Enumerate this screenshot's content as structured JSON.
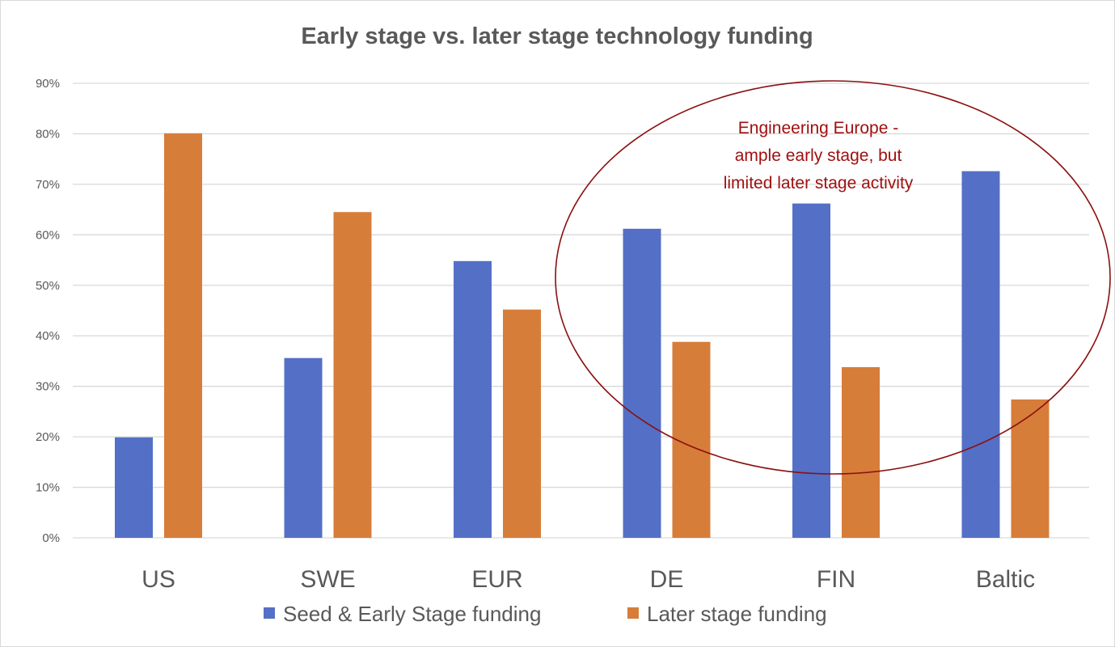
{
  "chart_data": {
    "type": "bar",
    "title": "Early stage vs. later stage technology funding",
    "categories": [
      "US",
      "SWE",
      "EUR",
      "DE",
      "FIN",
      "Baltic"
    ],
    "series": [
      {
        "name": "Seed & Early Stage funding",
        "color": "#5470c6",
        "values": [
          19.9,
          35.6,
          54.8,
          61.2,
          66.2,
          72.6
        ]
      },
      {
        "name": "Later stage funding",
        "color": "#d77d3a",
        "values": [
          80.1,
          64.5,
          45.2,
          38.8,
          33.8,
          27.4
        ]
      }
    ],
    "ylim": [
      0,
      90
    ],
    "yticks": [
      "0%",
      "10%",
      "20%",
      "30%",
      "40%",
      "50%",
      "60%",
      "70%",
      "80%",
      "90%"
    ],
    "xlabel": "",
    "ylabel": "",
    "grid": true,
    "legend": "bottom",
    "annotation": {
      "lines": [
        "Engineering Europe -",
        "ample early stage, but",
        "limited later stage activity"
      ],
      "color": "#a01010",
      "encircles": [
        "DE",
        "FIN",
        "Baltic"
      ]
    }
  }
}
